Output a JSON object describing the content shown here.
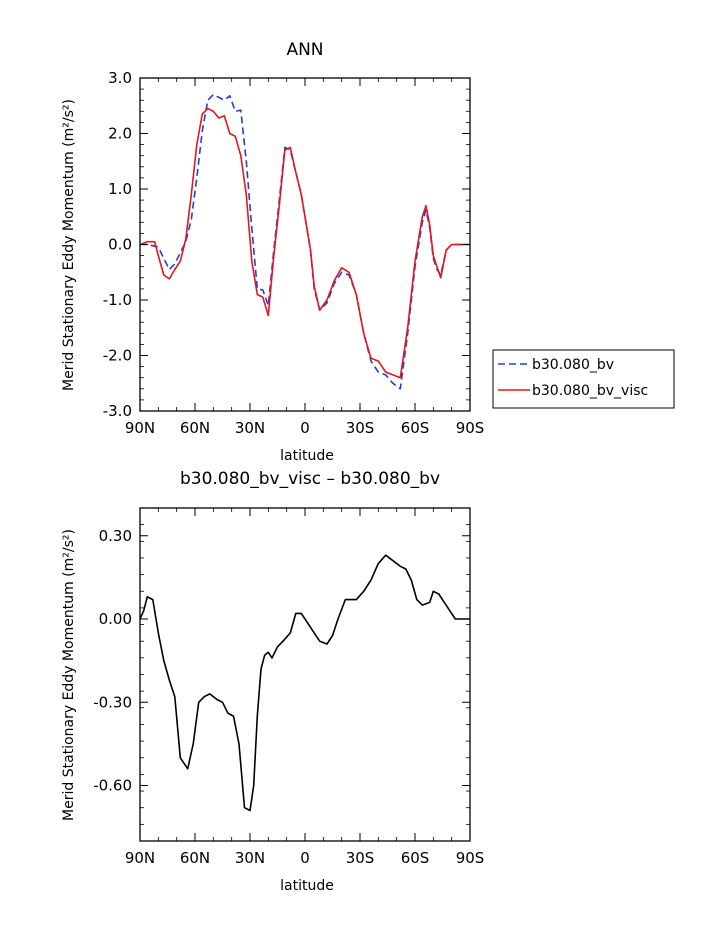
{
  "chart_data": [
    {
      "type": "line",
      "title": "ANN",
      "xlabel": "latitude",
      "ylabel": "Merid Stationary Eddy Momentum (m²/s²)",
      "xlim": [
        90,
        -90
      ],
      "ylim": [
        -3.0,
        3.0
      ],
      "x_ticks": [
        90,
        60,
        30,
        0,
        -30,
        -60,
        -90
      ],
      "x_tick_labels": [
        "90N",
        "60N",
        "30N",
        "0",
        "30S",
        "60S",
        "90S"
      ],
      "y_ticks": [
        3.0,
        2.0,
        1.0,
        0.0,
        -1.0,
        -2.0,
        -3.0
      ],
      "y_tick_labels": [
        "3.0",
        "2.0",
        "1.0",
        "0.0",
        "-1.0",
        "-2.0",
        "-3.0"
      ],
      "legend_position": "right",
      "series": [
        {
          "name": "b30.080_bv",
          "color": "#1f3fd8",
          "style": "dashed",
          "x": [
            90,
            86,
            82,
            80,
            77,
            74,
            71,
            68,
            65,
            62,
            59,
            56,
            53,
            50,
            47,
            44,
            41,
            38,
            35,
            32,
            29,
            26,
            23,
            20,
            17,
            14,
            11,
            8,
            5,
            2,
            0,
            -3,
            -5,
            -8,
            -12,
            -16,
            -20,
            -24,
            -28,
            -32,
            -36,
            -40,
            -44,
            -48,
            -52,
            -56,
            -60,
            -64,
            -66,
            -68,
            -70,
            -72,
            -74,
            -77,
            -80,
            -82,
            -84,
            -86,
            -88,
            -90
          ],
          "values": [
            0.0,
            0.0,
            -0.03,
            -0.05,
            -0.25,
            -0.45,
            -0.35,
            -0.15,
            0.05,
            0.45,
            1.2,
            2.05,
            2.6,
            2.7,
            2.65,
            2.6,
            2.68,
            2.4,
            2.42,
            1.5,
            0.3,
            -0.8,
            -0.82,
            -1.1,
            -0.1,
            0.8,
            1.75,
            1.7,
            1.3,
            0.9,
            0.5,
            -0.1,
            -0.8,
            -1.18,
            -1.05,
            -0.7,
            -0.5,
            -0.55,
            -0.9,
            -1.6,
            -2.1,
            -2.3,
            -2.35,
            -2.5,
            -2.6,
            -1.6,
            -0.4,
            0.4,
            0.62,
            0.3,
            -0.25,
            -0.45,
            -0.55,
            -0.1,
            0.0,
            0.0,
            0.0,
            0.0,
            0.0,
            0.0
          ]
        },
        {
          "name": "b30.080_bv_visc",
          "color": "#e8141c",
          "style": "solid",
          "x": [
            90,
            86,
            82,
            80,
            77,
            74,
            71,
            68,
            65,
            62,
            59,
            56,
            53,
            50,
            47,
            44,
            41,
            38,
            35,
            32,
            29,
            26,
            23,
            20,
            17,
            14,
            11,
            8,
            5,
            2,
            0,
            -3,
            -5,
            -8,
            -12,
            -16,
            -20,
            -24,
            -28,
            -32,
            -36,
            -40,
            -44,
            -48,
            -52,
            -56,
            -60,
            -64,
            -66,
            -68,
            -70,
            -72,
            -74,
            -77,
            -80,
            -82,
            -84,
            -86,
            -88,
            -90
          ],
          "values": [
            0.0,
            0.05,
            0.05,
            -0.2,
            -0.55,
            -0.62,
            -0.45,
            -0.3,
            0.1,
            0.9,
            1.8,
            2.35,
            2.45,
            2.4,
            2.28,
            2.32,
            2.0,
            1.95,
            1.6,
            0.9,
            -0.3,
            -0.9,
            -0.95,
            -1.28,
            -0.2,
            0.7,
            1.7,
            1.75,
            1.3,
            0.9,
            0.5,
            -0.1,
            -0.75,
            -1.18,
            -1.0,
            -0.65,
            -0.42,
            -0.5,
            -0.9,
            -1.6,
            -2.05,
            -2.1,
            -2.3,
            -2.35,
            -2.4,
            -1.5,
            -0.3,
            0.5,
            0.7,
            0.35,
            -0.2,
            -0.4,
            -0.6,
            -0.1,
            0.0,
            0.0,
            0.0,
            0.0,
            0.0,
            0.0
          ]
        }
      ]
    },
    {
      "type": "line",
      "title": "b30.080_bv_visc – b30.080_bv",
      "xlabel": "latitude",
      "ylabel": "Merid Stationary Eddy Momentum (m²/s²)",
      "xlim": [
        90,
        -90
      ],
      "ylim": [
        -0.8,
        0.4
      ],
      "x_ticks": [
        90,
        60,
        30,
        0,
        -30,
        -60,
        -90
      ],
      "x_tick_labels": [
        "90N",
        "60N",
        "30N",
        "0",
        "30S",
        "60S",
        "90S"
      ],
      "y_ticks": [
        0.3,
        0.0,
        -0.3,
        -0.6
      ],
      "y_tick_labels": [
        "0.30",
        "0.00",
        "-0.30",
        "-0.60"
      ],
      "series": [
        {
          "name": "b30.080_bv_visc – b30.080_bv",
          "color": "#000000",
          "style": "solid",
          "x": [
            90,
            88,
            86,
            83,
            80,
            77,
            74,
            71,
            68,
            64,
            61,
            58,
            55,
            52,
            48,
            45,
            42,
            39,
            36,
            33,
            30,
            28,
            26,
            24,
            22,
            20,
            18,
            15,
            12,
            8,
            5,
            2,
            0,
            -3,
            -5,
            -8,
            -12,
            -15,
            -18,
            -22,
            -25,
            -28,
            -32,
            -36,
            -40,
            -44,
            -48,
            -52,
            -55,
            -58,
            -61,
            -64,
            -68,
            -70,
            -73,
            -76,
            -79,
            -82,
            -85,
            -88,
            -90
          ],
          "values": [
            0.0,
            0.03,
            0.08,
            0.07,
            -0.05,
            -0.15,
            -0.22,
            -0.28,
            -0.5,
            -0.54,
            -0.45,
            -0.3,
            -0.28,
            -0.27,
            -0.29,
            -0.3,
            -0.34,
            -0.35,
            -0.45,
            -0.68,
            -0.69,
            -0.6,
            -0.35,
            -0.18,
            -0.13,
            -0.12,
            -0.14,
            -0.1,
            -0.08,
            -0.05,
            0.02,
            0.02,
            0.0,
            -0.03,
            -0.05,
            -0.08,
            -0.09,
            -0.06,
            0.0,
            0.07,
            0.07,
            0.07,
            0.1,
            0.14,
            0.2,
            0.23,
            0.21,
            0.19,
            0.18,
            0.14,
            0.07,
            0.05,
            0.06,
            0.1,
            0.09,
            0.06,
            0.03,
            0.0,
            0.0,
            0.0,
            0.0
          ]
        }
      ]
    }
  ]
}
